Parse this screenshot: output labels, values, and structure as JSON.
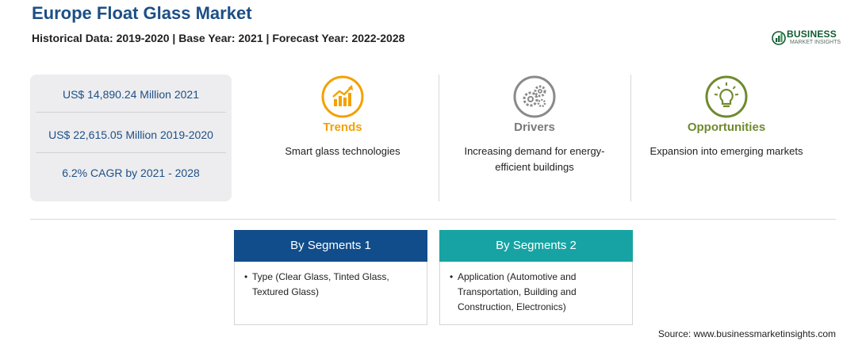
{
  "header": {
    "title": "Europe Float Glass Market",
    "subtitle": "Historical Data: 2019-2020 | Base Year: 2021 | Forecast Year: 2022-2028"
  },
  "logo": {
    "name": "BUSINESS",
    "sub": "MARKET INSIGHTS",
    "color": "#0f5b30"
  },
  "stats": [
    "US$ 14,890.24 Million 2021",
    "US$ 22,615.05 Million 2019-2020",
    "6.2% CAGR by 2021 - 2028"
  ],
  "features": [
    {
      "icon": "trends-chart-icon",
      "name": "Trends",
      "color": "#f4a100",
      "description": "Smart glass technologies"
    },
    {
      "icon": "gears-icon",
      "name": "Drivers",
      "color": "#7a7a7a",
      "description": "Increasing demand for energy-efficient buildings"
    },
    {
      "icon": "lightbulb-icon",
      "name": "Opportunities",
      "color": "#6f8a2e",
      "description": "Expansion into emerging markets"
    }
  ],
  "segments": [
    {
      "title": "By Segments 1",
      "color": "#114d8a",
      "bullet": "•",
      "text": "Type (Clear Glass, Tinted Glass, Textured Glass)"
    },
    {
      "title": "By Segments 2",
      "color": "#17a3a3",
      "bullet": "•",
      "text": "Application (Automotive and Transportation, Building and Construction, Electronics)"
    }
  ],
  "source": "Source: www.businessmarketinsights.com"
}
